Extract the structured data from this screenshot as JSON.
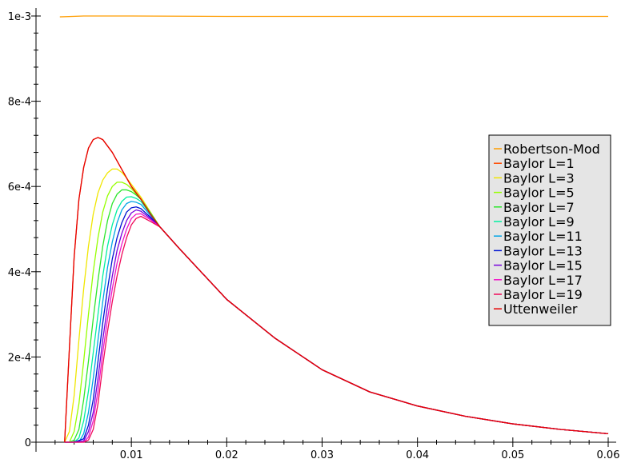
{
  "chart_data": {
    "type": "line",
    "title": "",
    "xlabel": "",
    "ylabel": "",
    "xlim": [
      0.0,
      0.06
    ],
    "ylim": [
      0.0,
      0.001
    ],
    "x_ticks": [
      {
        "value": 0.01,
        "label": "0.01"
      },
      {
        "value": 0.02,
        "label": "0.02"
      },
      {
        "value": 0.03,
        "label": "0.03"
      },
      {
        "value": 0.04,
        "label": "0.04"
      },
      {
        "value": 0.05,
        "label": "0.05"
      },
      {
        "value": 0.06,
        "label": "0.06"
      }
    ],
    "y_ticks": [
      {
        "value": 0.0,
        "label": "0"
      },
      {
        "value": 0.0002,
        "label": "2e-4"
      },
      {
        "value": 0.0004,
        "label": "4e-4"
      },
      {
        "value": 0.0006,
        "label": "6e-4"
      },
      {
        "value": 0.0008,
        "label": "8e-4"
      },
      {
        "value": 0.001,
        "label": "1e-3"
      }
    ],
    "grid": false,
    "legend_position": "right",
    "tail_points": {
      "x": [
        0.013,
        0.015,
        0.02,
        0.025,
        0.03,
        0.035,
        0.04,
        0.045,
        0.05,
        0.055,
        0.06
      ],
      "y": [
        0.000505,
        0.000455,
        0.000335,
        0.000245,
        0.00017,
        0.000118,
        8.5e-05,
        6.1e-05,
        4.3e-05,
        3e-05,
        2e-05
      ]
    },
    "series": [
      {
        "name": "Robertson-Mod",
        "color": "#ff9d00",
        "x": [
          0.0025,
          0.005,
          0.01,
          0.02,
          0.03,
          0.04,
          0.05,
          0.06
        ],
        "y": [
          0.000998,
          0.001,
          0.001,
          0.000999,
          0.000999,
          0.000999,
          0.000999,
          0.000999
        ]
      },
      {
        "name": "Baylor L=1",
        "color": "#ff4b00",
        "x": [
          0.003,
          0.0035,
          0.004,
          0.0045,
          0.005,
          0.0055,
          0.006,
          0.0065,
          0.007,
          0.008,
          0.009,
          0.01,
          0.011,
          0.012
        ],
        "y": [
          0.0,
          0.00022,
          0.000435,
          0.00057,
          0.000645,
          0.00069,
          0.00071,
          0.000715,
          0.00071,
          0.00068,
          0.00064,
          0.0006,
          0.00057,
          0.000535
        ]
      },
      {
        "name": "Baylor L=3",
        "color": "#f0e600",
        "x": [
          0.003,
          0.0035,
          0.004,
          0.0045,
          0.005,
          0.0055,
          0.006,
          0.0065,
          0.007,
          0.0075,
          0.008,
          0.0085,
          0.009,
          0.0095,
          0.01,
          0.011,
          0.012
        ],
        "y": [
          0.0,
          2.5e-05,
          0.00011,
          0.00024,
          0.00036,
          0.00046,
          0.000535,
          0.000585,
          0.000615,
          0.000632,
          0.000641,
          0.000641,
          0.000633,
          0.00062,
          0.000605,
          0.000575,
          0.00054
        ]
      },
      {
        "name": "Baylor L=5",
        "color": "#96ff00",
        "x": [
          0.003,
          0.0035,
          0.004,
          0.0045,
          0.005,
          0.0055,
          0.006,
          0.0065,
          0.007,
          0.0075,
          0.008,
          0.0085,
          0.009,
          0.0095,
          0.01,
          0.011,
          0.012
        ],
        "y": [
          0.0,
          0.0,
          2.5e-05,
          9e-05,
          0.00019,
          0.0003,
          0.0004,
          0.00048,
          0.00054,
          0.000578,
          0.0006,
          0.00061,
          0.00061,
          0.000605,
          0.000595,
          0.00057,
          0.000538
        ]
      },
      {
        "name": "Baylor L=7",
        "color": "#2ce62c",
        "x": [
          0.003,
          0.0035,
          0.004,
          0.0045,
          0.005,
          0.0055,
          0.006,
          0.0065,
          0.007,
          0.0075,
          0.008,
          0.0085,
          0.009,
          0.0095,
          0.01,
          0.0105,
          0.011,
          0.012
        ],
        "y": [
          0.0,
          0.0,
          5e-06,
          3e-05,
          0.0001,
          0.00019,
          0.00029,
          0.00038,
          0.00046,
          0.00052,
          0.00056,
          0.000582,
          0.000592,
          0.000592,
          0.000588,
          0.00058,
          0.00057,
          0.000538
        ]
      },
      {
        "name": "Baylor L=9",
        "color": "#00f0a0",
        "x": [
          0.003,
          0.004,
          0.0045,
          0.005,
          0.0055,
          0.006,
          0.0065,
          0.007,
          0.0075,
          0.008,
          0.0085,
          0.009,
          0.0095,
          0.01,
          0.0105,
          0.011,
          0.012
        ],
        "y": [
          0.0,
          0.0,
          1e-05,
          5e-05,
          0.00012,
          0.00021,
          0.0003,
          0.00039,
          0.00046,
          0.00051,
          0.000545,
          0.000565,
          0.000575,
          0.000576,
          0.000572,
          0.000565,
          0.000535
        ]
      },
      {
        "name": "Baylor L=11",
        "color": "#00a5e6",
        "x": [
          0.003,
          0.004,
          0.0045,
          0.005,
          0.0055,
          0.006,
          0.0065,
          0.007,
          0.0075,
          0.008,
          0.0085,
          0.009,
          0.0095,
          0.01,
          0.0105,
          0.011,
          0.012
        ],
        "y": [
          0.0,
          0.0,
          0.0,
          2e-05,
          7e-05,
          0.00015,
          0.00024,
          0.00033,
          0.00041,
          0.00047,
          0.000515,
          0.000545,
          0.00056,
          0.000565,
          0.000563,
          0.000558,
          0.000532
        ]
      },
      {
        "name": "Baylor L=13",
        "color": "#0014d2",
        "x": [
          0.003,
          0.004,
          0.005,
          0.0055,
          0.006,
          0.0065,
          0.007,
          0.0075,
          0.008,
          0.0085,
          0.009,
          0.0095,
          0.01,
          0.0105,
          0.011,
          0.012
        ],
        "y": [
          0.0,
          0.0,
          8e-06,
          4e-05,
          0.0001,
          0.00019,
          0.00028,
          0.00036,
          0.00043,
          0.00048,
          0.000515,
          0.00054,
          0.00055,
          0.000552,
          0.000548,
          0.000528
        ]
      },
      {
        "name": "Baylor L=15",
        "color": "#7800dc",
        "x": [
          0.003,
          0.004,
          0.005,
          0.0055,
          0.006,
          0.0065,
          0.007,
          0.0075,
          0.008,
          0.0085,
          0.009,
          0.0095,
          0.01,
          0.0105,
          0.011,
          0.012
        ],
        "y": [
          0.0,
          0.0,
          3e-06,
          2.5e-05,
          7e-05,
          0.00015,
          0.00024,
          0.00032,
          0.00039,
          0.00045,
          0.00049,
          0.00052,
          0.000538,
          0.000545,
          0.000542,
          0.000525
        ]
      },
      {
        "name": "Baylor L=17",
        "color": "#f014c8",
        "x": [
          0.003,
          0.004,
          0.005,
          0.0055,
          0.006,
          0.0065,
          0.007,
          0.0075,
          0.008,
          0.0085,
          0.009,
          0.0095,
          0.01,
          0.0105,
          0.011,
          0.012
        ],
        "y": [
          0.0,
          0.0,
          0.0,
          1.2e-05,
          5e-05,
          0.00012,
          0.00021,
          0.00029,
          0.00036,
          0.00042,
          0.000465,
          0.0005,
          0.000525,
          0.000535,
          0.000536,
          0.000522
        ]
      },
      {
        "name": "Baylor L=19",
        "color": "#f00a5a",
        "x": [
          0.003,
          0.004,
          0.005,
          0.0055,
          0.006,
          0.0065,
          0.007,
          0.0075,
          0.008,
          0.0085,
          0.009,
          0.0095,
          0.01,
          0.0105,
          0.011,
          0.012
        ],
        "y": [
          0.0,
          0.0,
          0.0,
          5e-06,
          3e-05,
          9e-05,
          0.00018,
          0.00026,
          0.00033,
          0.00039,
          0.00044,
          0.00048,
          0.00051,
          0.000525,
          0.00053,
          0.000518
        ]
      },
      {
        "name": "Uttenweiler",
        "color": "#e60000",
        "x": [
          0.003,
          0.0035,
          0.004,
          0.0045,
          0.005,
          0.0055,
          0.006,
          0.0065,
          0.007,
          0.008,
          0.009,
          0.01,
          0.011,
          0.012
        ],
        "y": [
          0.0,
          0.00022,
          0.000435,
          0.00057,
          0.000645,
          0.00069,
          0.00071,
          0.000715,
          0.00071,
          0.00068,
          0.00064,
          0.0006,
          0.00057,
          0.000535
        ]
      }
    ]
  }
}
